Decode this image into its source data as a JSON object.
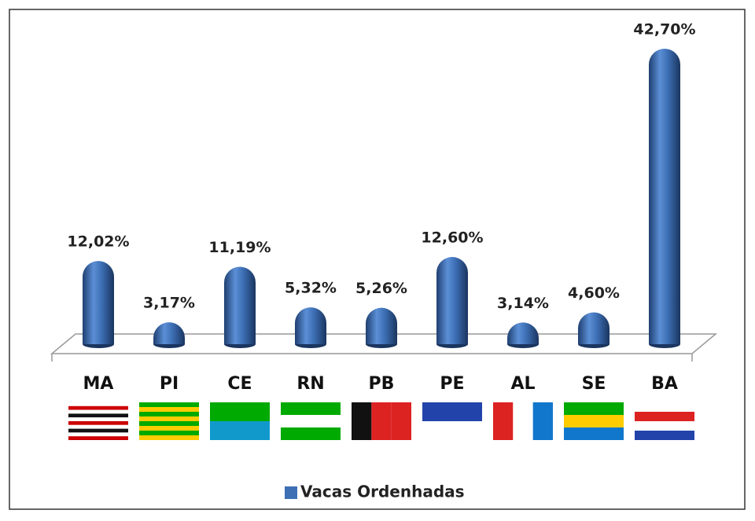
{
  "chart_data": {
    "type": "bar",
    "categories": [
      "MA",
      "PI",
      "CE",
      "RN",
      "PB",
      "PE",
      "AL",
      "SE",
      "BA"
    ],
    "series": [
      {
        "name": "Vacas Ordenhadas",
        "color": "#3d6fb5",
        "values": [
          12.02,
          3.17,
          11.19,
          5.32,
          5.26,
          12.6,
          3.14,
          4.6,
          42.7
        ],
        "value_labels": [
          "12,02%",
          "3,17%",
          "11,19%",
          "5,32%",
          "5,26%",
          "12,60%",
          "3,14%",
          "4,60%",
          "42,70%"
        ]
      }
    ],
    "legend": "bottom"
  }
}
